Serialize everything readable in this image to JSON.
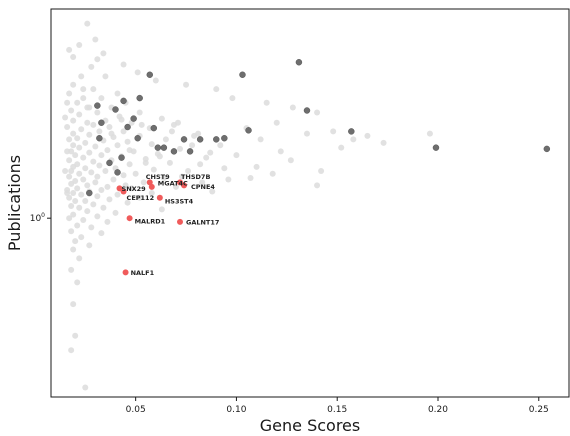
{
  "chart_data": {
    "type": "scatter",
    "title": "",
    "xlabel": "Gene Scores",
    "ylabel": "Publications",
    "xlim": [
      0.008,
      0.265
    ],
    "ylim": [
      0.37,
      3.2
    ],
    "yscale": "log",
    "x_ticks": [
      {
        "value": 0.05,
        "label": "0.05"
      },
      {
        "value": 0.1,
        "label": "0.10"
      },
      {
        "value": 0.15,
        "label": "0.15"
      },
      {
        "value": 0.2,
        "label": "0.20"
      },
      {
        "value": 0.25,
        "label": "0.25"
      }
    ],
    "y_ticks": [
      {
        "value": 1,
        "label": "10",
        "exponent": "0"
      }
    ],
    "background_series": {
      "color": "#dcdcdc",
      "points": [
        [
          0.026,
          2.95
        ],
        [
          0.019,
          2.45
        ],
        [
          0.031,
          2.42
        ],
        [
          0.028,
          2.32
        ],
        [
          0.023,
          2.2
        ],
        [
          0.035,
          2.2
        ],
        [
          0.019,
          2.1
        ],
        [
          0.029,
          2.05
        ],
        [
          0.041,
          2.0
        ],
        [
          0.017,
          2.0
        ],
        [
          0.024,
          1.95
        ],
        [
          0.033,
          1.95
        ],
        [
          0.045,
          1.9
        ],
        [
          0.021,
          1.9
        ],
        [
          0.027,
          1.85
        ],
        [
          0.038,
          1.85
        ],
        [
          0.018,
          1.82
        ],
        [
          0.052,
          1.8
        ],
        [
          0.031,
          1.8
        ],
        [
          0.022,
          1.78
        ],
        [
          0.042,
          1.76
        ],
        [
          0.063,
          1.74
        ],
        [
          0.035,
          1.72
        ],
        [
          0.019,
          1.72
        ],
        [
          0.026,
          1.7
        ],
        [
          0.048,
          1.7
        ],
        [
          0.071,
          1.7
        ],
        [
          0.029,
          1.68
        ],
        [
          0.016,
          1.66
        ],
        [
          0.037,
          1.66
        ],
        [
          0.057,
          1.65
        ],
        [
          0.023,
          1.64
        ],
        [
          0.044,
          1.62
        ],
        [
          0.032,
          1.62
        ],
        [
          0.019,
          1.6
        ],
        [
          0.081,
          1.6
        ],
        [
          0.027,
          1.59
        ],
        [
          0.052,
          1.58
        ],
        [
          0.039,
          1.57
        ],
        [
          0.021,
          1.56
        ],
        [
          0.065,
          1.55
        ],
        [
          0.017,
          1.55
        ],
        [
          0.034,
          1.54
        ],
        [
          0.046,
          1.53
        ],
        [
          0.025,
          1.52
        ],
        [
          0.058,
          1.51
        ],
        [
          0.019,
          1.5
        ],
        [
          0.041,
          1.5
        ],
        [
          0.092,
          1.5
        ],
        [
          0.03,
          1.49
        ],
        [
          0.022,
          1.48
        ],
        [
          0.072,
          1.47
        ],
        [
          0.036,
          1.46
        ],
        [
          0.018,
          1.45
        ],
        [
          0.049,
          1.45
        ],
        [
          0.027,
          1.44
        ],
        [
          0.061,
          1.43
        ],
        [
          0.033,
          1.42
        ],
        [
          0.02,
          1.42
        ],
        [
          0.043,
          1.41
        ],
        [
          0.024,
          1.4
        ],
        [
          0.085,
          1.4
        ],
        [
          0.055,
          1.39
        ],
        [
          0.017,
          1.38
        ],
        [
          0.038,
          1.38
        ],
        [
          0.029,
          1.37
        ],
        [
          0.067,
          1.36
        ],
        [
          0.021,
          1.35
        ],
        [
          0.047,
          1.35
        ],
        [
          0.032,
          1.34
        ],
        [
          0.019,
          1.33
        ],
        [
          0.11,
          1.33
        ],
        [
          0.04,
          1.32
        ],
        [
          0.025,
          1.32
        ],
        [
          0.059,
          1.31
        ],
        [
          0.018,
          1.3
        ],
        [
          0.035,
          1.3
        ],
        [
          0.076,
          1.3
        ],
        [
          0.028,
          1.29
        ],
        [
          0.05,
          1.28
        ],
        [
          0.022,
          1.28
        ],
        [
          0.044,
          1.27
        ],
        [
          0.017,
          1.26
        ],
        [
          0.031,
          1.26
        ],
        [
          0.064,
          1.25
        ],
        [
          0.024,
          1.24
        ],
        [
          0.039,
          1.24
        ],
        [
          0.096,
          1.24
        ],
        [
          0.02,
          1.23
        ],
        [
          0.054,
          1.22
        ],
        [
          0.03,
          1.22
        ],
        [
          0.018,
          1.21
        ],
        [
          0.045,
          1.2
        ],
        [
          0.026,
          1.2
        ],
        [
          0.07,
          1.19
        ],
        [
          0.036,
          1.19
        ],
        [
          0.021,
          1.18
        ],
        [
          0.048,
          1.18
        ],
        [
          0.016,
          1.17
        ],
        [
          0.033,
          1.17
        ],
        [
          0.088,
          1.16
        ],
        [
          0.027,
          1.16
        ],
        [
          0.058,
          1.15
        ],
        [
          0.019,
          1.15
        ],
        [
          0.041,
          1.14
        ],
        [
          0.023,
          1.14
        ],
        [
          0.031,
          1.13
        ],
        [
          0.017,
          1.12
        ],
        [
          0.052,
          1.12
        ],
        [
          0.037,
          1.11
        ],
        [
          0.025,
          1.1
        ],
        [
          0.02,
          1.1
        ],
        [
          0.046,
          1.09
        ],
        [
          0.029,
          1.08
        ],
        [
          0.018,
          1.07
        ],
        [
          0.034,
          1.06
        ],
        [
          0.022,
          1.06
        ],
        [
          0.063,
          1.05
        ],
        [
          0.026,
          1.04
        ],
        [
          0.04,
          1.03
        ],
        [
          0.019,
          1.02
        ],
        [
          0.031,
          1.01
        ],
        [
          0.017,
          1.0
        ],
        [
          0.024,
          0.99
        ],
        [
          0.036,
          0.98
        ],
        [
          0.021,
          0.96
        ],
        [
          0.028,
          0.95
        ],
        [
          0.018,
          0.93
        ],
        [
          0.033,
          0.92
        ],
        [
          0.023,
          0.9
        ],
        [
          0.02,
          0.88
        ],
        [
          0.027,
          0.86
        ],
        [
          0.019,
          0.84
        ],
        [
          0.022,
          0.8
        ],
        [
          0.018,
          0.75
        ],
        [
          0.021,
          0.7
        ],
        [
          0.019,
          0.62
        ],
        [
          0.02,
          0.52
        ],
        [
          0.018,
          0.48
        ],
        [
          0.025,
          0.39
        ],
        [
          0.017,
          2.55
        ],
        [
          0.022,
          2.62
        ],
        [
          0.03,
          2.7
        ],
        [
          0.034,
          2.5
        ],
        [
          0.044,
          2.35
        ],
        [
          0.051,
          2.25
        ],
        [
          0.06,
          2.15
        ],
        [
          0.075,
          2.1
        ],
        [
          0.09,
          2.05
        ],
        [
          0.098,
          1.95
        ],
        [
          0.115,
          1.9
        ],
        [
          0.128,
          1.85
        ],
        [
          0.14,
          1.8
        ],
        [
          0.12,
          1.7
        ],
        [
          0.105,
          1.65
        ],
        [
          0.135,
          1.6
        ],
        [
          0.148,
          1.62
        ],
        [
          0.158,
          1.55
        ],
        [
          0.165,
          1.58
        ],
        [
          0.173,
          1.52
        ],
        [
          0.152,
          1.48
        ],
        [
          0.196,
          1.6
        ],
        [
          0.122,
          1.45
        ],
        [
          0.112,
          1.55
        ],
        [
          0.1,
          1.42
        ],
        [
          0.082,
          1.35
        ],
        [
          0.078,
          1.5
        ],
        [
          0.068,
          1.62
        ],
        [
          0.142,
          1.3
        ],
        [
          0.127,
          1.38
        ],
        [
          0.118,
          1.28
        ],
        [
          0.107,
          1.25
        ],
        [
          0.094,
          1.32
        ],
        [
          0.083,
          1.22
        ],
        [
          0.073,
          1.26
        ],
        [
          0.14,
          1.2
        ],
        [
          0.055,
          1.36
        ],
        [
          0.062,
          1.41
        ],
        [
          0.087,
          1.44
        ],
        [
          0.047,
          1.46
        ],
        [
          0.038,
          1.6
        ],
        [
          0.016,
          1.9
        ],
        [
          0.015,
          1.75
        ],
        [
          0.016,
          1.45
        ],
        [
          0.015,
          1.3
        ],
        [
          0.016,
          1.15
        ],
        [
          0.024,
          2.05
        ],
        [
          0.026,
          1.85
        ],
        [
          0.043,
          1.73
        ],
        [
          0.053,
          1.68
        ],
        [
          0.069,
          1.68
        ],
        [
          0.079,
          1.58
        ]
      ]
    },
    "highlight_series": {
      "color": "#6e6e6e",
      "points": [
        [
          0.027,
          1.15
        ],
        [
          0.057,
          2.22
        ],
        [
          0.103,
          2.22
        ],
        [
          0.131,
          2.38
        ],
        [
          0.135,
          1.82
        ],
        [
          0.157,
          1.62
        ],
        [
          0.199,
          1.48
        ],
        [
          0.254,
          1.47
        ],
        [
          0.074,
          1.55
        ],
        [
          0.082,
          1.55
        ],
        [
          0.09,
          1.55
        ],
        [
          0.061,
          1.48
        ],
        [
          0.064,
          1.48
        ],
        [
          0.069,
          1.45
        ],
        [
          0.077,
          1.45
        ],
        [
          0.049,
          1.74
        ],
        [
          0.059,
          1.65
        ],
        [
          0.094,
          1.56
        ],
        [
          0.106,
          1.63
        ],
        [
          0.04,
          1.83
        ],
        [
          0.033,
          1.7
        ],
        [
          0.044,
          1.92
        ],
        [
          0.051,
          1.56
        ],
        [
          0.032,
          1.56
        ],
        [
          0.043,
          1.4
        ],
        [
          0.041,
          1.29
        ],
        [
          0.052,
          1.95
        ],
        [
          0.037,
          1.36
        ],
        [
          0.046,
          1.66
        ],
        [
          0.031,
          1.87
        ]
      ]
    },
    "labeled_genes": {
      "color": "#f05b5b",
      "genes": [
        {
          "name": "CHST9",
          "x": 0.057,
          "y": 1.22,
          "anchor": "start",
          "dx": -7,
          "dy": -6
        },
        {
          "name": "THSD7B",
          "x": 0.072,
          "y": 1.22,
          "anchor": "start",
          "dx": -2,
          "dy": -6
        },
        {
          "name": "MGAT4C",
          "x": 0.058,
          "y": 1.19,
          "anchor": "start",
          "dx": 3,
          "dy": -4
        },
        {
          "name": "CPNE4",
          "x": 0.074,
          "y": 1.2,
          "anchor": "start",
          "dx": 4,
          "dy": 1
        },
        {
          "name": "SNX29",
          "x": 0.042,
          "y": 1.18,
          "anchor": "start",
          "dx": -1,
          "dy": 0
        },
        {
          "name": "CEP112",
          "x": 0.044,
          "y": 1.16,
          "anchor": "start",
          "dx": 0,
          "dy": 6
        },
        {
          "name": "HS3ST4",
          "x": 0.062,
          "y": 1.12,
          "anchor": "start",
          "dx": 2,
          "dy": 3
        },
        {
          "name": "MALRD1",
          "x": 0.047,
          "y": 1.0,
          "anchor": "start",
          "dx": 2,
          "dy": 3
        },
        {
          "name": "GALNT17",
          "x": 0.072,
          "y": 0.98,
          "anchor": "start",
          "dx": 3,
          "dy": 0
        },
        {
          "name": "NALF1",
          "x": 0.045,
          "y": 0.74,
          "anchor": "start",
          "dx": 2,
          "dy": 0
        }
      ]
    },
    "grid": false,
    "legend": "none"
  }
}
